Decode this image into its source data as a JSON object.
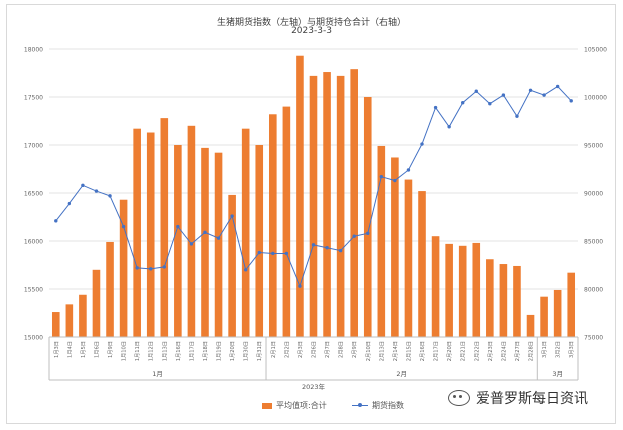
{
  "chart_data": {
    "type": "bar",
    "title": "生猪期货指数（左轴）与期货持仓合计（右轴）",
    "subtitle": "2023-3-3",
    "categories": [
      "1月3日",
      "1月4日",
      "1月5日",
      "1月6日",
      "1月9日",
      "1月10日",
      "1月11日",
      "1月12日",
      "1月13日",
      "1月16日",
      "1月17日",
      "1月18日",
      "1月19日",
      "1月20日",
      "1月30日",
      "1月31日",
      "2月1日",
      "2月2日",
      "2月3日",
      "2月6日",
      "2月7日",
      "2月8日",
      "2月9日",
      "2月10日",
      "2月13日",
      "2月14日",
      "2月15日",
      "2月16日",
      "2月17日",
      "2月20日",
      "2月21日",
      "2月22日",
      "2月23日",
      "2月24日",
      "2月27日",
      "2月28日",
      "3月1日",
      "3月2日",
      "3月3日"
    ],
    "month_groups": [
      {
        "label": "1月",
        "count": 16
      },
      {
        "label": "2月",
        "count": 20
      },
      {
        "label": "3月",
        "count": 3
      }
    ],
    "year_label": "2023年",
    "left_axis": {
      "min": 15000,
      "max": 18000,
      "ticks": [
        15000,
        15500,
        16000,
        16500,
        17000,
        17500,
        18000
      ]
    },
    "right_axis": {
      "min": 75000,
      "max": 105000,
      "ticks": [
        75000,
        80000,
        85000,
        90000,
        95000,
        100000,
        105000
      ]
    },
    "grid": true,
    "legend_position": "bottom",
    "series": [
      {
        "name": "平均值项:合计",
        "type": "bar",
        "axis": "right",
        "color": "#ed7d31",
        "values": [
          77600,
          78400,
          79400,
          82000,
          84900,
          89300,
          96700,
          96300,
          97800,
          95000,
          97000,
          94700,
          94200,
          89800,
          96700,
          95000,
          98200,
          99000,
          104300,
          102200,
          102600,
          102200,
          102900,
          100000,
          94900,
          93700,
          91400,
          90200,
          85500,
          84700,
          84500,
          84800,
          83100,
          82600,
          82400,
          77300,
          79200,
          79900,
          81700
        ]
      },
      {
        "name": "期货指数",
        "type": "line",
        "axis": "left",
        "color": "#4472c4",
        "values": [
          16210,
          16390,
          16580,
          16520,
          16470,
          16150,
          15720,
          15710,
          15730,
          16150,
          15970,
          16090,
          16030,
          16260,
          15700,
          15880,
          15870,
          15870,
          15530,
          15960,
          15930,
          15900,
          16050,
          16080,
          16670,
          16630,
          16740,
          17010,
          17390,
          17190,
          17440,
          17560,
          17430,
          17520,
          17300,
          17570,
          17520,
          17610,
          17460
        ]
      }
    ]
  },
  "watermark": {
    "text": "爱普罗斯每日资讯",
    "icon": "wechat-icon"
  }
}
